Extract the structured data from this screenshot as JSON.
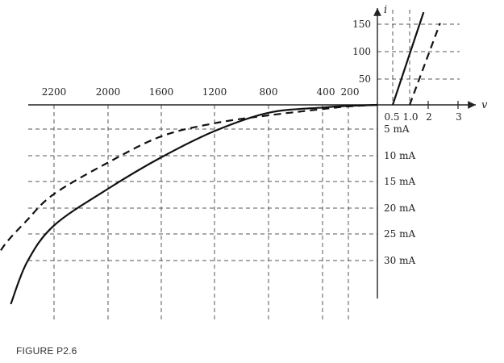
{
  "figure": {
    "caption": "FIGURE P2.6"
  },
  "chart_data": {
    "type": "line",
    "xlabel": "v",
    "ylabel": "i",
    "grid": true,
    "x_ticks_reverse": [
      "2200",
      "2000",
      "1600",
      "1200",
      "800",
      "400",
      "200"
    ],
    "x_ticks_forward": [
      "0.5",
      "1.0",
      "2",
      "3"
    ],
    "y_ticks_forward": [
      "50",
      "100",
      "150"
    ],
    "y_ticks_reverse": [
      "5 mA",
      "10 mA",
      "15 mA",
      "20 mA",
      "25 mA",
      "30 mA"
    ],
    "series": [
      {
        "style": "solid",
        "forward": [
          [
            0.5,
            0
          ],
          [
            1.75,
            170
          ]
        ],
        "reverse": [
          [
            0,
            0
          ],
          [
            -200,
            -0.2
          ],
          [
            -400,
            -0.5
          ],
          [
            -800,
            -1.5
          ],
          [
            -1200,
            -5
          ],
          [
            -1600,
            -10
          ],
          [
            -2000,
            -16
          ],
          [
            -2200,
            -23
          ],
          [
            -2300,
            -30
          ],
          [
            -2360,
            -38
          ]
        ]
      },
      {
        "style": "dashed",
        "forward": [
          [
            1.0,
            0
          ],
          [
            2.4,
            150
          ]
        ],
        "reverse": [
          [
            0,
            0
          ],
          [
            -200,
            -0.3
          ],
          [
            -400,
            -0.8
          ],
          [
            -800,
            -2
          ],
          [
            -1200,
            -3.5
          ],
          [
            -1600,
            -6
          ],
          [
            -2000,
            -11
          ],
          [
            -2200,
            -17
          ],
          [
            -2300,
            -22
          ],
          [
            -2400,
            -28
          ],
          [
            -2450,
            -35
          ]
        ]
      }
    ]
  }
}
